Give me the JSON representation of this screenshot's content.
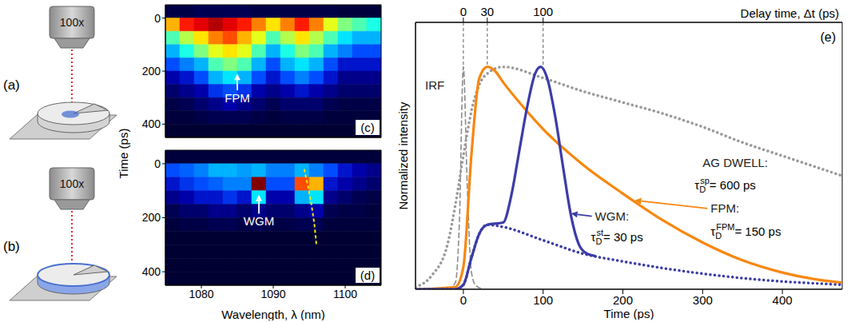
{
  "diagrams": [
    {
      "label": "(a)",
      "objective": "100x"
    },
    {
      "label": "(b)",
      "objective": "100x"
    }
  ],
  "chart_data": [
    {
      "panel": "(c)",
      "type": "heatmap",
      "ylabel": "Time (ps)",
      "xlim": [
        1075,
        1105
      ],
      "xticks": [
        1080,
        1090,
        1100
      ],
      "ylim": [
        -50,
        450
      ],
      "yticks": [
        0,
        200,
        400
      ],
      "tick_labels": "y",
      "x_bins": [
        1075,
        1077,
        1079,
        1081,
        1083,
        1085,
        1087,
        1089,
        1091,
        1093,
        1095,
        1097,
        1099,
        1101,
        1103,
        1105
      ],
      "y_bins": [
        -50,
        0,
        50,
        100,
        150,
        200,
        250,
        300,
        350,
        400,
        450
      ],
      "zlim": [
        0,
        1
      ],
      "cells": [
        [
          0.05,
          0.05,
          0.06,
          0.06,
          0.06,
          0.06,
          0.05,
          0.05,
          0.05,
          0.05,
          0.05,
          0.05,
          0.04,
          0.04,
          0.04
        ],
        [
          0.7,
          0.85,
          0.9,
          0.95,
          0.9,
          0.85,
          0.75,
          0.65,
          0.75,
          0.85,
          0.75,
          0.6,
          0.5,
          0.45,
          0.4
        ],
        [
          0.45,
          0.55,
          0.65,
          0.75,
          0.8,
          0.7,
          0.6,
          0.45,
          0.55,
          0.65,
          0.55,
          0.45,
          0.35,
          0.3,
          0.3
        ],
        [
          0.3,
          0.4,
          0.5,
          0.6,
          0.65,
          0.6,
          0.45,
          0.3,
          0.4,
          0.5,
          0.45,
          0.3,
          0.25,
          0.2,
          0.2
        ],
        [
          0.2,
          0.25,
          0.3,
          0.45,
          0.5,
          0.45,
          0.3,
          0.2,
          0.3,
          0.35,
          0.3,
          0.2,
          0.15,
          0.15,
          0.15
        ],
        [
          0.12,
          0.15,
          0.2,
          0.3,
          0.35,
          0.3,
          0.2,
          0.15,
          0.2,
          0.25,
          0.2,
          0.15,
          0.1,
          0.1,
          0.1
        ],
        [
          0.08,
          0.1,
          0.12,
          0.18,
          0.2,
          0.18,
          0.12,
          0.1,
          0.12,
          0.15,
          0.12,
          0.1,
          0.08,
          0.08,
          0.08
        ],
        [
          0.05,
          0.06,
          0.08,
          0.1,
          0.12,
          0.1,
          0.08,
          0.06,
          0.08,
          0.08,
          0.08,
          0.06,
          0.05,
          0.05,
          0.05
        ],
        [
          0.04,
          0.04,
          0.05,
          0.06,
          0.06,
          0.06,
          0.05,
          0.04,
          0.05,
          0.05,
          0.05,
          0.04,
          0.04,
          0.04,
          0.04
        ],
        [
          0.03,
          0.03,
          0.03,
          0.03,
          0.03,
          0.03,
          0.03,
          0.03,
          0.03,
          0.03,
          0.03,
          0.03,
          0.03,
          0.03,
          0.03
        ]
      ],
      "annotations": [
        {
          "text": "FPM",
          "x": 1085,
          "y": 272,
          "arrow_to": [
            1085,
            210
          ],
          "color": "#ffffff"
        }
      ]
    },
    {
      "panel": "(d)",
      "type": "heatmap",
      "xlabel": "Wavelength, λ (nm)",
      "xlim": [
        1075,
        1105
      ],
      "xticks": [
        1080,
        1090,
        1100
      ],
      "ylim": [
        -50,
        450
      ],
      "yticks": [
        0,
        200,
        400
      ],
      "x_bins": [
        1075,
        1077,
        1079,
        1081,
        1083,
        1085,
        1087,
        1089,
        1091,
        1093,
        1095,
        1097,
        1099,
        1101,
        1103,
        1105
      ],
      "y_bins": [
        -50,
        0,
        50,
        100,
        150,
        200,
        250,
        300,
        350,
        400,
        450
      ],
      "zlim": [
        0,
        1
      ],
      "cells": [
        [
          0.04,
          0.04,
          0.04,
          0.04,
          0.04,
          0.04,
          0.04,
          0.04,
          0.04,
          0.04,
          0.04,
          0.04,
          0.04,
          0.04,
          0.04
        ],
        [
          0.2,
          0.22,
          0.25,
          0.3,
          0.3,
          0.28,
          0.3,
          0.25,
          0.25,
          0.3,
          0.25,
          0.2,
          0.15,
          0.12,
          0.1
        ],
        [
          0.15,
          0.18,
          0.2,
          0.22,
          0.25,
          0.25,
          1.0,
          0.2,
          0.2,
          0.8,
          0.7,
          0.15,
          0.12,
          0.1,
          0.08
        ],
        [
          0.1,
          0.12,
          0.15,
          0.15,
          0.18,
          0.15,
          0.35,
          0.12,
          0.12,
          0.3,
          0.35,
          0.1,
          0.08,
          0.06,
          0.05
        ],
        [
          0.06,
          0.08,
          0.08,
          0.1,
          0.1,
          0.08,
          0.1,
          0.08,
          0.08,
          0.1,
          0.12,
          0.06,
          0.05,
          0.05,
          0.04
        ],
        [
          0.04,
          0.05,
          0.05,
          0.06,
          0.06,
          0.05,
          0.06,
          0.05,
          0.05,
          0.06,
          0.06,
          0.04,
          0.04,
          0.04,
          0.04
        ],
        [
          0.03,
          0.03,
          0.03,
          0.03,
          0.03,
          0.03,
          0.03,
          0.03,
          0.03,
          0.03,
          0.03,
          0.03,
          0.03,
          0.03,
          0.03
        ],
        [
          0.03,
          0.03,
          0.03,
          0.03,
          0.03,
          0.03,
          0.03,
          0.03,
          0.03,
          0.03,
          0.03,
          0.03,
          0.03,
          0.03,
          0.03
        ],
        [
          0.03,
          0.03,
          0.03,
          0.03,
          0.03,
          0.03,
          0.03,
          0.03,
          0.03,
          0.03,
          0.03,
          0.03,
          0.03,
          0.03,
          0.03
        ],
        [
          0.03,
          0.03,
          0.03,
          0.03,
          0.03,
          0.03,
          0.03,
          0.03,
          0.03,
          0.03,
          0.03,
          0.03,
          0.03,
          0.03,
          0.03
        ]
      ],
      "series": [
        {
          "color": "#f2e600",
          "line_style": "dashed",
          "x": [
            1094.3,
            1094.8,
            1095.3,
            1095.7,
            1096.0
          ],
          "values": [
            20,
            80,
            150,
            220,
            300
          ]
        }
      ],
      "annotations": [
        {
          "text": "WGM",
          "x": 1088,
          "y": 185,
          "arrow_to": [
            1088,
            115
          ],
          "color": "#ffffff"
        }
      ]
    },
    {
      "panel": "(e)",
      "type": "line",
      "xlabel": "Time (ps)",
      "ylabel": "Normalized intensity",
      "x2label": "Delay time, Δt (ps)",
      "xlim": [
        -60,
        475
      ],
      "xticks": [
        0,
        100,
        200,
        300,
        400
      ],
      "x2lim": [
        -60,
        475
      ],
      "x2ticks": [
        0,
        30,
        100
      ],
      "ylim": [
        0,
        1.2
      ],
      "tick_labels": "x",
      "series": [
        {
          "color": "#8c8c8c",
          "line_style": "dashed",
          "x": [
            -60,
            -20,
            -10,
            -5,
            0,
            5,
            10,
            15,
            25
          ],
          "values": [
            0,
            0,
            0.03,
            0.3,
            1.0,
            0.45,
            0.08,
            0.02,
            0
          ]
        },
        {
          "color": "#9a9a9a",
          "line_style": "dotted",
          "x": [
            -60,
            -40,
            -20,
            -10,
            0,
            10,
            20,
            30,
            50,
            100,
            150,
            200,
            250,
            300,
            350,
            400,
            450,
            475
          ],
          "values": [
            0.01,
            0.06,
            0.2,
            0.38,
            0.6,
            0.8,
            0.92,
            0.97,
            1.0,
            0.95,
            0.89,
            0.84,
            0.79,
            0.73,
            0.66,
            0.6,
            0.54,
            0.51
          ]
        },
        {
          "color": "#f7870f",
          "line_style": "solid",
          "x": [
            -60,
            -10,
            0,
            10,
            20,
            30,
            40,
            50,
            75,
            100,
            150,
            200,
            250,
            300,
            350,
            400,
            450,
            475
          ],
          "values": [
            0,
            0.01,
            0.1,
            0.6,
            0.95,
            1.0,
            0.98,
            0.93,
            0.82,
            0.72,
            0.56,
            0.43,
            0.31,
            0.21,
            0.13,
            0.075,
            0.04,
            0.03
          ]
        },
        {
          "color": "#3c3ca8",
          "line_style": "dotted",
          "x": [
            -60,
            -10,
            0,
            10,
            20,
            30,
            50,
            100,
            150,
            200,
            250,
            300,
            350,
            400,
            450,
            475
          ],
          "values": [
            0,
            0,
            0.02,
            0.14,
            0.25,
            0.29,
            0.28,
            0.22,
            0.16,
            0.125,
            0.095,
            0.07,
            0.05,
            0.035,
            0.025,
            0.02
          ]
        },
        {
          "color": "#3c3ca8",
          "line_style": "solid",
          "x": [
            -60,
            -10,
            0,
            10,
            20,
            30,
            50,
            60,
            70,
            80,
            90,
            97,
            105,
            115,
            125,
            135,
            145,
            155,
            165
          ],
          "values": [
            0,
            0,
            0.02,
            0.14,
            0.25,
            0.29,
            0.3,
            0.42,
            0.62,
            0.82,
            0.97,
            1.0,
            0.95,
            0.78,
            0.55,
            0.33,
            0.2,
            0.16,
            0.15
          ]
        }
      ],
      "annotations": [
        {
          "text": "IRF",
          "x": -48,
          "y": 0.9
        },
        {
          "text": "AG DWELL:",
          "x": 300,
          "y": 0.55
        },
        {
          "symbol": "τ",
          "sub": "D",
          "sup": "sp",
          "text": "= 600 ps",
          "x": 290,
          "y": 0.45
        },
        {
          "text": "FPM:",
          "x": 310,
          "y": 0.345,
          "arrow_to": [
            215,
            0.4
          ],
          "color": "#f7870f"
        },
        {
          "symbol": "τ",
          "sub": "D",
          "sup": "FPM",
          "text": "= 150 ps",
          "x": 310,
          "y": 0.24
        },
        {
          "text": "WGM:",
          "x": 165,
          "y": 0.31,
          "arrow_to": [
            135,
            0.34
          ],
          "color": "#3c3ca8"
        },
        {
          "symbol": "τ",
          "sub": "D",
          "sup": "st",
          "text": "= 30 ps",
          "x": 160,
          "y": 0.215
        }
      ]
    }
  ]
}
